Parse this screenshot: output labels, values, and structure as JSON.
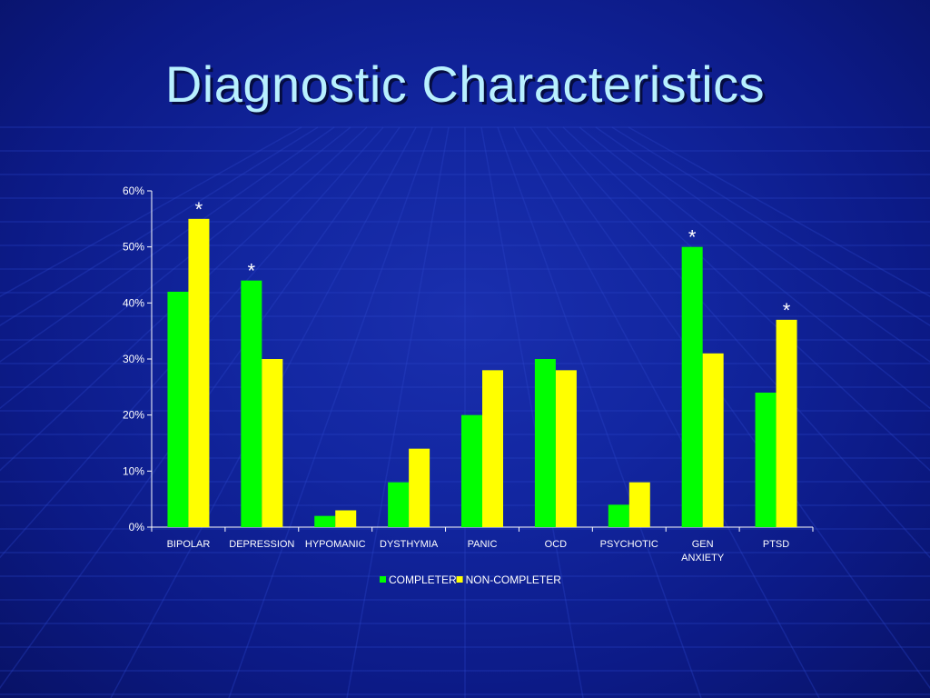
{
  "slide": {
    "title": "Diagnostic Characteristics"
  },
  "colors": {
    "background": "#1226a0",
    "completer": "#00ff00",
    "non_completer": "#ffff00",
    "title": "#b8f0ff"
  },
  "chart_data": {
    "type": "bar",
    "categories": [
      [
        "BIPOLAR"
      ],
      [
        "DEPRESSION"
      ],
      [
        "HYPOMANIC"
      ],
      [
        "DYSTHYMIA"
      ],
      [
        "PANIC"
      ],
      [
        "OCD"
      ],
      [
        "PSYCHOTIC"
      ],
      [
        "GEN",
        "ANXIETY"
      ],
      [
        "PTSD"
      ]
    ],
    "series": [
      {
        "name": "COMPLETER",
        "color": "#00ff00",
        "values": [
          42,
          44,
          2,
          8,
          20,
          30,
          4,
          50,
          24
        ]
      },
      {
        "name": "NON-COMPLETER",
        "color": "#ffff00",
        "values": [
          55,
          30,
          3,
          14,
          28,
          28,
          8,
          31,
          37
        ]
      }
    ],
    "significance_marks": [
      "*",
      "*",
      "",
      "",
      "",
      "",
      "",
      "*",
      "*"
    ],
    "ylim": [
      0,
      60
    ],
    "yticks": [
      "0%",
      "10%",
      "20%",
      "30%",
      "40%",
      "50%",
      "60%"
    ],
    "grid": false,
    "legend_position": "bottom"
  }
}
